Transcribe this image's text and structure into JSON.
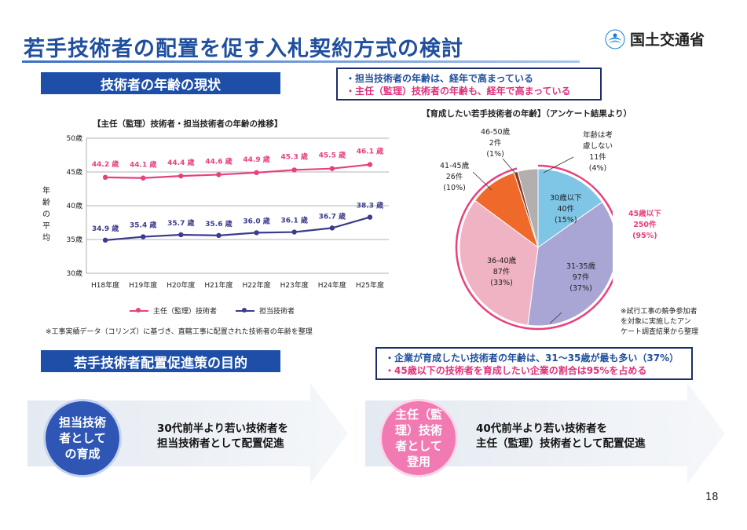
{
  "page": {
    "title": "若手技術者の配置を促す入札契約方式の検討",
    "logo_text": "国土交通省",
    "page_number": "18"
  },
  "sections": {
    "age_header": "技術者の年齢の現状",
    "purpose_header": "若手技術者配置促進策の目的"
  },
  "callout_top": {
    "line1": "・担当技術者の年齢は、経年で高まっている",
    "line2": "・主任（監理）技術者の年齢も、経年で高まっている"
  },
  "callout_bottom": {
    "line1": "・企業が育成したい技術者の年齢は、31～35歳が最も多い（37%）",
    "line2": "・45歳以下の技術者を育成したい企業の割合は95%を占める"
  },
  "line_chart_caption": "【主任（監理）技術者・担当技術者の年齢の推移】",
  "pie_chart_caption": "【育成したい若手技術者の年齢】（アンケート結果より）",
  "line_ylabel": "年齢の平均",
  "line_note": "※工事実績データ（コリンズ）に基づき、直轄工事に配置された技術者の年齢を整理",
  "survey_note": {
    "line1": "※試行工事の競争参加者",
    "line2": "を対象に実施したアン",
    "line3": "ケート調査結果から整理"
  },
  "pie_labels": {
    "s4650": {
      "l1": "46-50歳",
      "l2": "2件",
      "l3": "(1%)"
    },
    "s4145": {
      "l1": "41-45歳",
      "l2": "26件",
      "l3": "(10%)"
    },
    "unknown": {
      "l1": "年齢は考",
      "l2": "慮しない",
      "l3": "11件",
      "l4": "(4%)"
    },
    "s30": {
      "l1": "30歳以下",
      "l2": "40件",
      "l3": "(15%)"
    },
    "s3135": {
      "l1": "31-35歳",
      "l2": "97件",
      "l3": "(37%)"
    },
    "s3640": {
      "l1": "36-40歳",
      "l2": "87件",
      "l3": "(33%)"
    },
    "under45": {
      "l1": "45歳以下",
      "l2": "250件",
      "l3": "(95%)"
    }
  },
  "goals": {
    "left_circle": [
      "担当技術",
      "者として",
      "の育成"
    ],
    "left_text": [
      "30代前半より若い技術者を",
      "担当技術者として配置促進"
    ],
    "right_circle": [
      "主任（監",
      "理）技術",
      "者として",
      "登用"
    ],
    "right_text": [
      "40代前半より若い技術者を",
      "主任（監理）技術者として配置促進"
    ]
  },
  "chart_data": [
    {
      "type": "line",
      "title": "【主任（監理）技術者・担当技術者の年齢の推移】",
      "ylabel": "年齢の平均",
      "categories": [
        "H18年度",
        "H19年度",
        "H20年度",
        "H21年度",
        "H22年度",
        "H23年度",
        "H24年度",
        "H25年度"
      ],
      "ylim": [
        30,
        50
      ],
      "yticks": [
        30,
        35,
        40,
        45,
        50
      ],
      "ytick_labels": [
        "30歳",
        "35歳",
        "40歳",
        "45歳",
        "50歳"
      ],
      "grid": true,
      "legend": "bottom",
      "series": [
        {
          "name": "主任（監理）技術者",
          "color": "#e8407f",
          "values": [
            44.2,
            44.1,
            44.4,
            44.6,
            44.9,
            45.3,
            45.5,
            46.1
          ],
          "labels": [
            "44.2 歳",
            "44.1 歳",
            "44.4 歳",
            "44.6 歳",
            "44.9 歳",
            "45.3 歳",
            "45.5 歳",
            "46.1 歳"
          ]
        },
        {
          "name": "担当技術者",
          "color": "#3b3c8c",
          "values": [
            34.9,
            35.4,
            35.7,
            35.6,
            36.0,
            36.1,
            36.7,
            38.3
          ],
          "labels": [
            "34.9 歳",
            "35.4 歳",
            "35.7 歳",
            "35.6 歳",
            "36.0 歳",
            "36.1 歳",
            "36.7 歳",
            "38.3 歳"
          ]
        }
      ]
    },
    {
      "type": "pie",
      "title": "【育成したい若手技術者の年齢】（アンケート結果より）",
      "slices": [
        {
          "label": "30歳以下",
          "count": 40,
          "percent": 15,
          "color": "#7fc6e6"
        },
        {
          "label": "31-35歳",
          "count": 97,
          "percent": 37,
          "color": "#a9a6d6"
        },
        {
          "label": "36-40歳",
          "count": 87,
          "percent": 33,
          "color": "#f0b3c3"
        },
        {
          "label": "41-45歳",
          "count": 26,
          "percent": 10,
          "color": "#ef6a2a"
        },
        {
          "label": "46-50歳",
          "count": 2,
          "percent": 1,
          "color": "#8a3b2a"
        },
        {
          "label": "年齢は考慮しない",
          "count": 11,
          "percent": 4,
          "color": "#b3afae"
        }
      ],
      "annotation": {
        "label": "45歳以下",
        "count": 250,
        "percent": 95,
        "color": "#e8407f"
      }
    }
  ]
}
